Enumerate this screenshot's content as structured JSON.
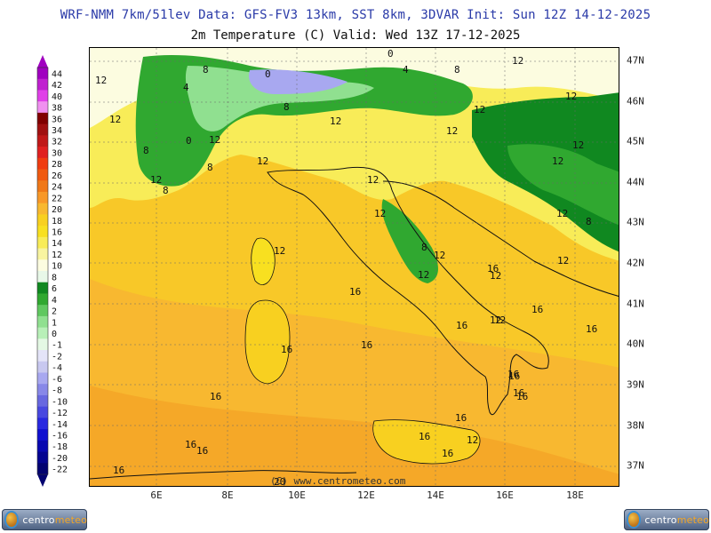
{
  "header": {
    "model_line": "WRF-NMM 7km/51lev   Data: GFS-FV3 13km, SST 8km, 3DVAR   Init: Sun 12Z 14-12-2025",
    "field_line": "2m Temperature (C)  Valid: Wed 13Z 17-12-2025"
  },
  "legend": {
    "labels": [
      "44",
      "42",
      "40",
      "38",
      "36",
      "34",
      "32",
      "30",
      "28",
      "26",
      "24",
      "22",
      "20",
      "18",
      "16",
      "14",
      "12",
      "10",
      "8",
      "6",
      "4",
      "2",
      "1",
      "0",
      "-1",
      "-2",
      "-4",
      "-6",
      "-8",
      "-10",
      "-12",
      "-14",
      "-16",
      "-18",
      "-20",
      "-22"
    ],
    "colors": [
      "#a000c0",
      "#c020d0",
      "#e040e8",
      "#f090f0",
      "#800000",
      "#a01010",
      "#c01818",
      "#e02020",
      "#f03c10",
      "#f05a10",
      "#f07818",
      "#f89828",
      "#f8b830",
      "#f8d020",
      "#f8e020",
      "#f8ec58",
      "#f8f4a0",
      "#fcfce0",
      "#e8f8e8",
      "#108820",
      "#30a830",
      "#60c860",
      "#90e090",
      "#b8f0b8",
      "#e4f8e4",
      "#e4e4f8",
      "#c8c8f0",
      "#a8a8f0",
      "#8888e8",
      "#6868e0",
      "#4848e0",
      "#2828e0",
      "#1010d0",
      "#0808b0",
      "#040490",
      "#020270"
    ]
  },
  "axes": {
    "x_labels": [
      "6E",
      "8E",
      "10E",
      "12E",
      "14E",
      "16E",
      "18E"
    ],
    "y_labels": [
      "47N",
      "46N",
      "45N",
      "44N",
      "43N",
      "42N",
      "41N",
      "40N",
      "39N",
      "38N",
      "37N"
    ]
  },
  "map": {
    "contour_labels": [
      "12",
      "12",
      "4",
      "0",
      "8",
      "0",
      "4",
      "8",
      "8",
      "12",
      "12",
      "12",
      "12",
      "12",
      "12",
      "12",
      "12",
      "8",
      "0",
      "12",
      "8",
      "12",
      "12",
      "8",
      "12",
      "12",
      "12",
      "8",
      "12",
      "12",
      "8",
      "12",
      "16",
      "16",
      "16",
      "16",
      "16",
      "16",
      "16",
      "16",
      "16",
      "16",
      "16",
      "16",
      "16",
      "16",
      "16",
      "12",
      "12",
      "12",
      "12",
      "16",
      "16",
      "16",
      "20"
    ]
  },
  "watermark": "(C) www.centrometeo.com",
  "logos": {
    "left": {
      "brand_a": "centro",
      "brand_b": "meteo"
    },
    "right": {
      "brand_a": "centro",
      "brand_b": "meteo"
    }
  }
}
